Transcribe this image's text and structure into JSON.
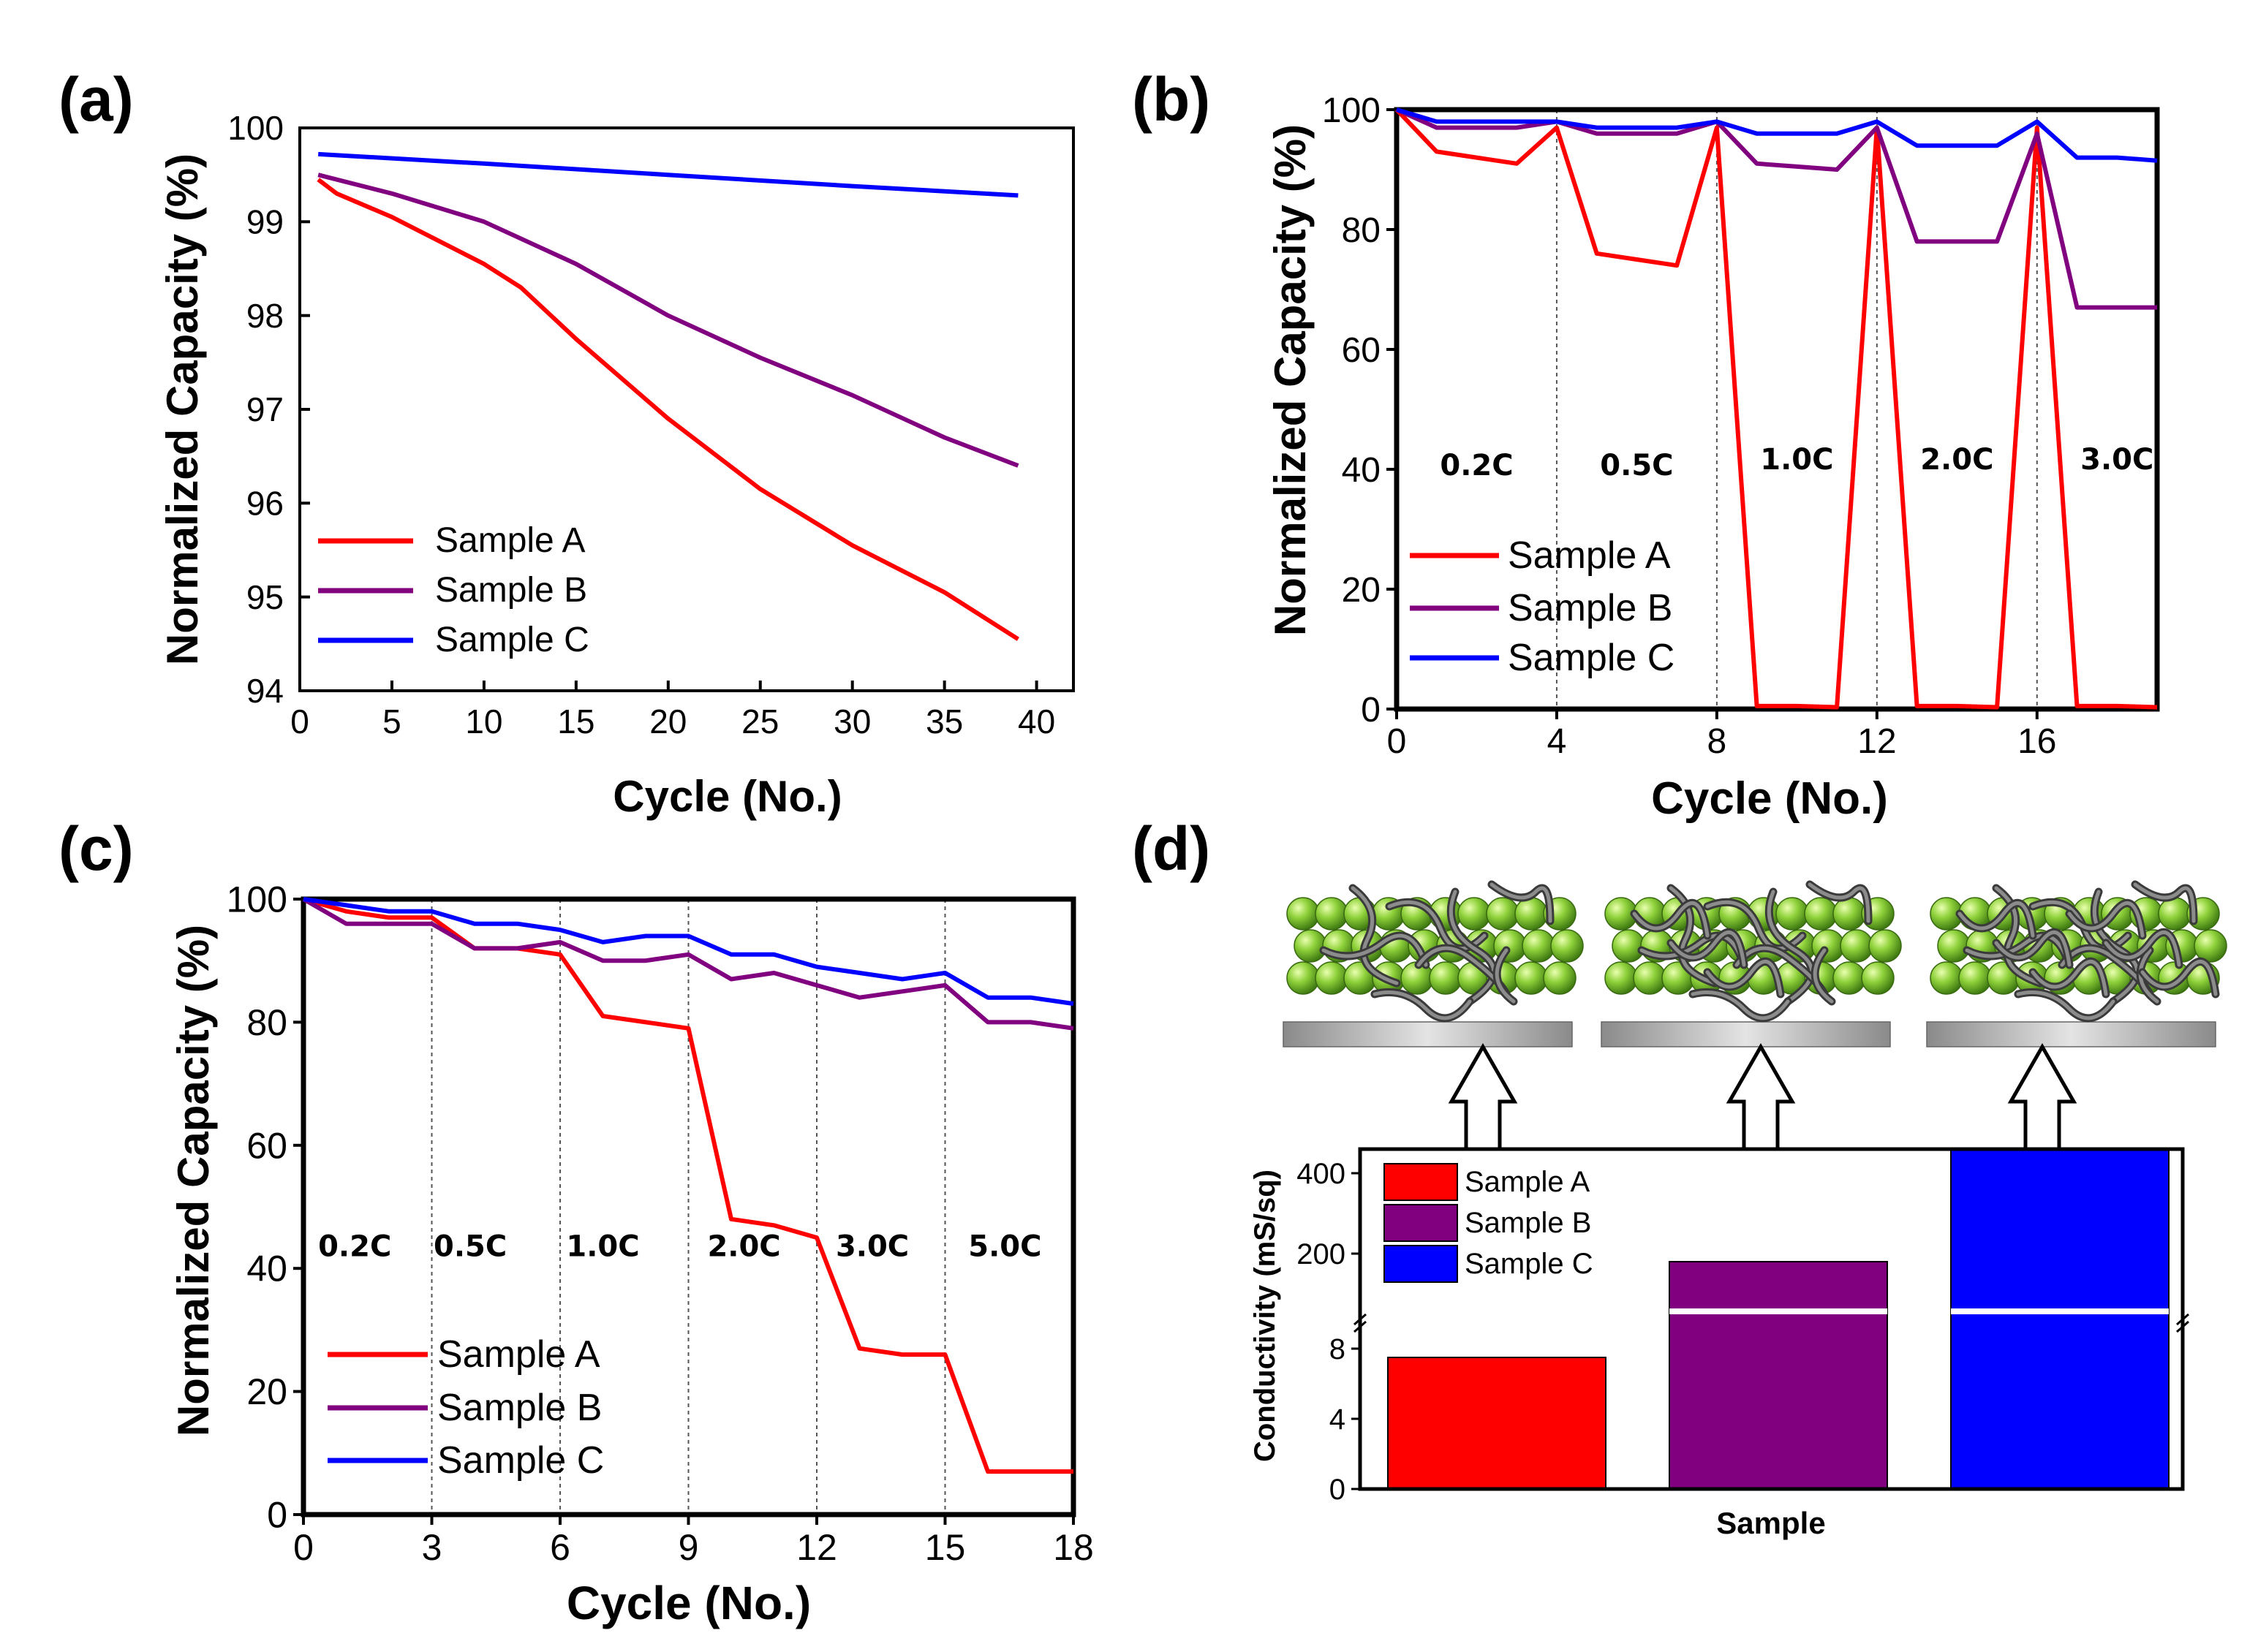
{
  "chart_data": [
    {
      "panel": "(a)",
      "type": "line",
      "xlabel": "Cycle (No.)",
      "ylabel": "Normalized Capacity (%)",
      "xlim": [
        0,
        42
      ],
      "ylim": [
        94,
        100
      ],
      "xticks": [
        0,
        5,
        10,
        15,
        20,
        25,
        30,
        35,
        40
      ],
      "yticks": [
        94,
        95,
        96,
        97,
        98,
        99,
        100
      ],
      "legend_position": "bottom-left",
      "series": [
        {
          "name": "Sample A",
          "color": "#ff0000",
          "x": [
            1,
            2,
            5,
            10,
            12,
            15,
            20,
            25,
            30,
            35,
            39
          ],
          "y": [
            99.45,
            99.3,
            99.05,
            98.55,
            98.3,
            97.75,
            96.9,
            96.15,
            95.55,
            95.05,
            94.55
          ]
        },
        {
          "name": "Sample B",
          "color": "#800080",
          "x": [
            1,
            5,
            10,
            15,
            20,
            25,
            30,
            35,
            39
          ],
          "y": [
            99.5,
            99.3,
            99.0,
            98.55,
            98.0,
            97.55,
            97.15,
            96.7,
            96.4
          ]
        },
        {
          "name": "Sample C",
          "color": "#0000ff",
          "x": [
            1,
            10,
            20,
            30,
            39
          ],
          "y": [
            99.72,
            99.62,
            99.5,
            99.38,
            99.28
          ]
        }
      ]
    },
    {
      "panel": "(b)",
      "type": "line",
      "xlabel": "Cycle (No.)",
      "ylabel": "Normalized Capacity (%)",
      "xlim": [
        0,
        19
      ],
      "ylim": [
        0,
        100
      ],
      "xticks": [
        0,
        4,
        8,
        12,
        16
      ],
      "yticks": [
        0,
        20,
        40,
        60,
        80,
        100
      ],
      "dividers": [
        4,
        8,
        12,
        16
      ],
      "rate_labels": [
        {
          "text": "0.2C",
          "x": 2,
          "y": 39
        },
        {
          "text": "0.5C",
          "x": 6,
          "y": 39
        },
        {
          "text": "1.0C",
          "x": 10,
          "y": 40
        },
        {
          "text": "2.0C",
          "x": 14,
          "y": 40
        },
        {
          "text": "3.0C",
          "x": 18,
          "y": 40
        }
      ],
      "legend_position": "bottom-left",
      "series": [
        {
          "name": "Sample A",
          "color": "#ff0000",
          "x": [
            0,
            1,
            2,
            3,
            4,
            5,
            6,
            7,
            8,
            9,
            10,
            11,
            12,
            13,
            14,
            15,
            16,
            17,
            18,
            19
          ],
          "y": [
            100,
            93,
            92,
            91,
            97,
            76,
            75,
            74,
            97,
            0.5,
            0.5,
            0.3,
            97,
            0.5,
            0.5,
            0.3,
            97,
            0.5,
            0.5,
            0.3
          ]
        },
        {
          "name": "Sample B",
          "color": "#800080",
          "x": [
            0,
            1,
            2,
            3,
            4,
            5,
            6,
            7,
            8,
            9,
            10,
            11,
            12,
            13,
            14,
            15,
            16,
            17,
            18,
            19
          ],
          "y": [
            100,
            97,
            97,
            97,
            98,
            96,
            96,
            96,
            98,
            91,
            90.5,
            90,
            97,
            78,
            78,
            78,
            96,
            67,
            67,
            67
          ]
        },
        {
          "name": "Sample C",
          "color": "#0000ff",
          "x": [
            0,
            1,
            2,
            3,
            4,
            5,
            6,
            7,
            8,
            9,
            10,
            11,
            12,
            13,
            14,
            15,
            16,
            17,
            18,
            19
          ],
          "y": [
            100,
            98,
            98,
            98,
            98,
            97,
            97,
            97,
            98,
            96,
            96,
            96,
            98,
            94,
            94,
            94,
            98,
            92,
            92,
            91.5
          ]
        }
      ]
    },
    {
      "panel": "(c)",
      "type": "line",
      "xlabel": "Cycle (No.)",
      "ylabel": "Normalized Capacity (%)",
      "xlim": [
        0,
        18
      ],
      "ylim": [
        0,
        100
      ],
      "xticks": [
        0,
        3,
        6,
        9,
        12,
        15,
        18
      ],
      "yticks": [
        0,
        20,
        40,
        60,
        80,
        100
      ],
      "dividers": [
        3,
        6,
        9,
        12,
        15
      ],
      "rate_labels": [
        {
          "text": "0.2C",
          "x": 1.2,
          "y": 42
        },
        {
          "text": "0.5C",
          "x": 3.9,
          "y": 42
        },
        {
          "text": "1.0C",
          "x": 7.0,
          "y": 42
        },
        {
          "text": "2.0C",
          "x": 10.3,
          "y": 42
        },
        {
          "text": "3.0C",
          "x": 13.3,
          "y": 42
        },
        {
          "text": "5.0C",
          "x": 16.4,
          "y": 42
        }
      ],
      "legend_position": "bottom-left",
      "series": [
        {
          "name": "Sample A",
          "color": "#ff0000",
          "x": [
            0,
            1,
            2,
            3,
            4,
            5,
            6,
            7,
            8,
            9,
            10,
            11,
            12,
            13,
            14,
            15,
            16,
            17,
            18
          ],
          "y": [
            100,
            98,
            97,
            97,
            92,
            92,
            91,
            81,
            80,
            79,
            48,
            47,
            45,
            27,
            26,
            26,
            7,
            7,
            7
          ]
        },
        {
          "name": "Sample B",
          "color": "#800080",
          "x": [
            0,
            1,
            2,
            3,
            4,
            5,
            6,
            7,
            8,
            9,
            10,
            11,
            12,
            13,
            14,
            15,
            16,
            17,
            18
          ],
          "y": [
            100,
            96,
            96,
            96,
            92,
            92,
            93,
            90,
            90,
            91,
            87,
            88,
            86,
            84,
            85,
            86,
            80,
            80,
            79
          ]
        },
        {
          "name": "Sample C",
          "color": "#0000ff",
          "x": [
            0,
            1,
            2,
            3,
            4,
            5,
            6,
            7,
            8,
            9,
            10,
            11,
            12,
            13,
            14,
            15,
            16,
            17,
            18
          ],
          "y": [
            100,
            99,
            98,
            98,
            96,
            96,
            95,
            93,
            94,
            94,
            91,
            91,
            89,
            88,
            87,
            88,
            84,
            84,
            83
          ]
        }
      ]
    },
    {
      "panel": "(d)",
      "type": "bar",
      "xlabel": "Sample",
      "ylabel": "Conductivity (mS/sq)",
      "axis_break": true,
      "lower_range": [
        0,
        10
      ],
      "upper_range": [
        100,
        460
      ],
      "lower_ticks": [
        0,
        4,
        8
      ],
      "upper_ticks": [
        200,
        400
      ],
      "legend_position": "top-left",
      "categories": [
        "Sample A",
        "Sample B",
        "Sample C"
      ],
      "values": [
        7.5,
        180,
        460
      ],
      "colors": [
        "#ff0000",
        "#800080",
        "#0000ff"
      ]
    }
  ]
}
